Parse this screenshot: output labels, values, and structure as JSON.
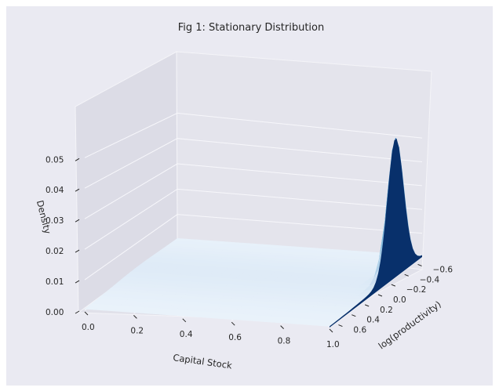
{
  "chart_data": {
    "type": "surface3d",
    "title": "Fig 1: Stationary Distribution",
    "xlabel": "Capital Stock",
    "ylabel": "log(productivity)",
    "zlabel": "Density",
    "x_ticks": [
      "0.0",
      "0.2",
      "0.4",
      "0.6",
      "0.8",
      "1.0"
    ],
    "y_ticks": [
      "−0.6",
      "−0.4",
      "−0.2",
      "0.0",
      "0.2",
      "0.4",
      "0.6"
    ],
    "z_ticks": [
      "0.00",
      "0.01",
      "0.02",
      "0.03",
      "0.04",
      "0.05"
    ],
    "xlim": [
      0,
      1
    ],
    "ylim": [
      -0.7,
      0.7
    ],
    "zlim": [
      0,
      0.057
    ],
    "colormap": "Blues",
    "peak": {
      "x": 1.0,
      "y": -0.3,
      "z": 0.054
    },
    "surface_note": "near-zero density everywhere except a sharp ridge at capital stock 1.0"
  }
}
